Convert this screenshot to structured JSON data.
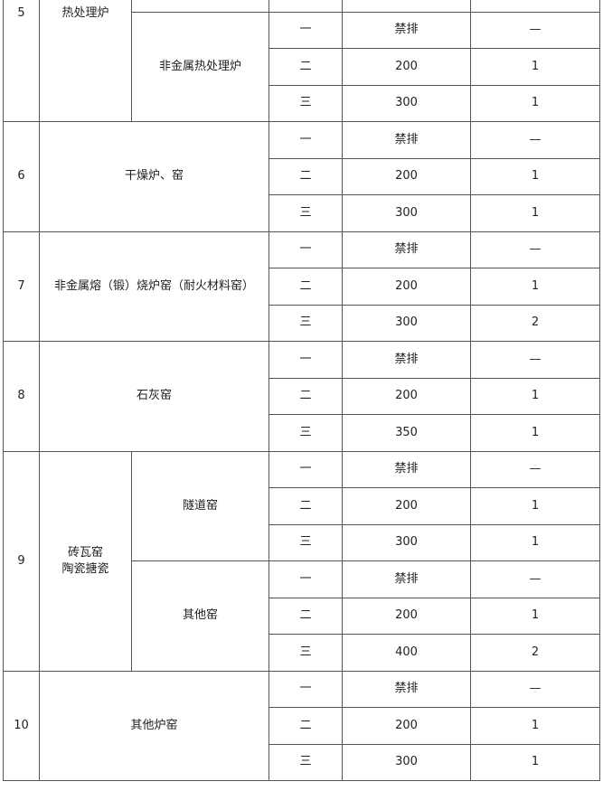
{
  "rows": {
    "r5": {
      "no": "5",
      "category": "热处理炉",
      "sub": "非金属热处理炉",
      "grades": [
        {
          "g": "一",
          "v": "禁排",
          "n": "—"
        },
        {
          "g": "二",
          "v": "200",
          "n": "1"
        },
        {
          "g": "三",
          "v": "300",
          "n": "1"
        }
      ]
    },
    "r6": {
      "no": "6",
      "category": "干燥炉、窑",
      "grades": [
        {
          "g": "一",
          "v": "禁排",
          "n": "—"
        },
        {
          "g": "二",
          "v": "200",
          "n": "1"
        },
        {
          "g": "三",
          "v": "300",
          "n": "1"
        }
      ]
    },
    "r7": {
      "no": "7",
      "category": "非金属熔（锻）烧炉窑（耐火材料窑）",
      "grades": [
        {
          "g": "一",
          "v": "禁排",
          "n": "—"
        },
        {
          "g": "二",
          "v": "200",
          "n": "1"
        },
        {
          "g": "三",
          "v": "300",
          "n": "2"
        }
      ]
    },
    "r8": {
      "no": "8",
      "category": "石灰窑",
      "grades": [
        {
          "g": "一",
          "v": "禁排",
          "n": "—"
        },
        {
          "g": "二",
          "v": "200",
          "n": "1"
        },
        {
          "g": "三",
          "v": "350",
          "n": "1"
        }
      ]
    },
    "r9": {
      "no": "9",
      "category_line1": "砖瓦窑",
      "category_line2": "陶瓷搪瓷",
      "sub1": "隧道窑",
      "grades1": [
        {
          "g": "一",
          "v": "禁排",
          "n": "—"
        },
        {
          "g": "二",
          "v": "200",
          "n": "1"
        },
        {
          "g": "三",
          "v": "300",
          "n": "1"
        }
      ],
      "sub2": "其他窑",
      "grades2": [
        {
          "g": "一",
          "v": "禁排",
          "n": "—"
        },
        {
          "g": "二",
          "v": "200",
          "n": "1"
        },
        {
          "g": "三",
          "v": "400",
          "n": "2"
        }
      ]
    },
    "r10": {
      "no": "10",
      "category": "其他炉窑",
      "grades": [
        {
          "g": "一",
          "v": "禁排",
          "n": "—"
        },
        {
          "g": "二",
          "v": "200",
          "n": "1"
        },
        {
          "g": "三",
          "v": "300",
          "n": "1"
        }
      ]
    }
  }
}
